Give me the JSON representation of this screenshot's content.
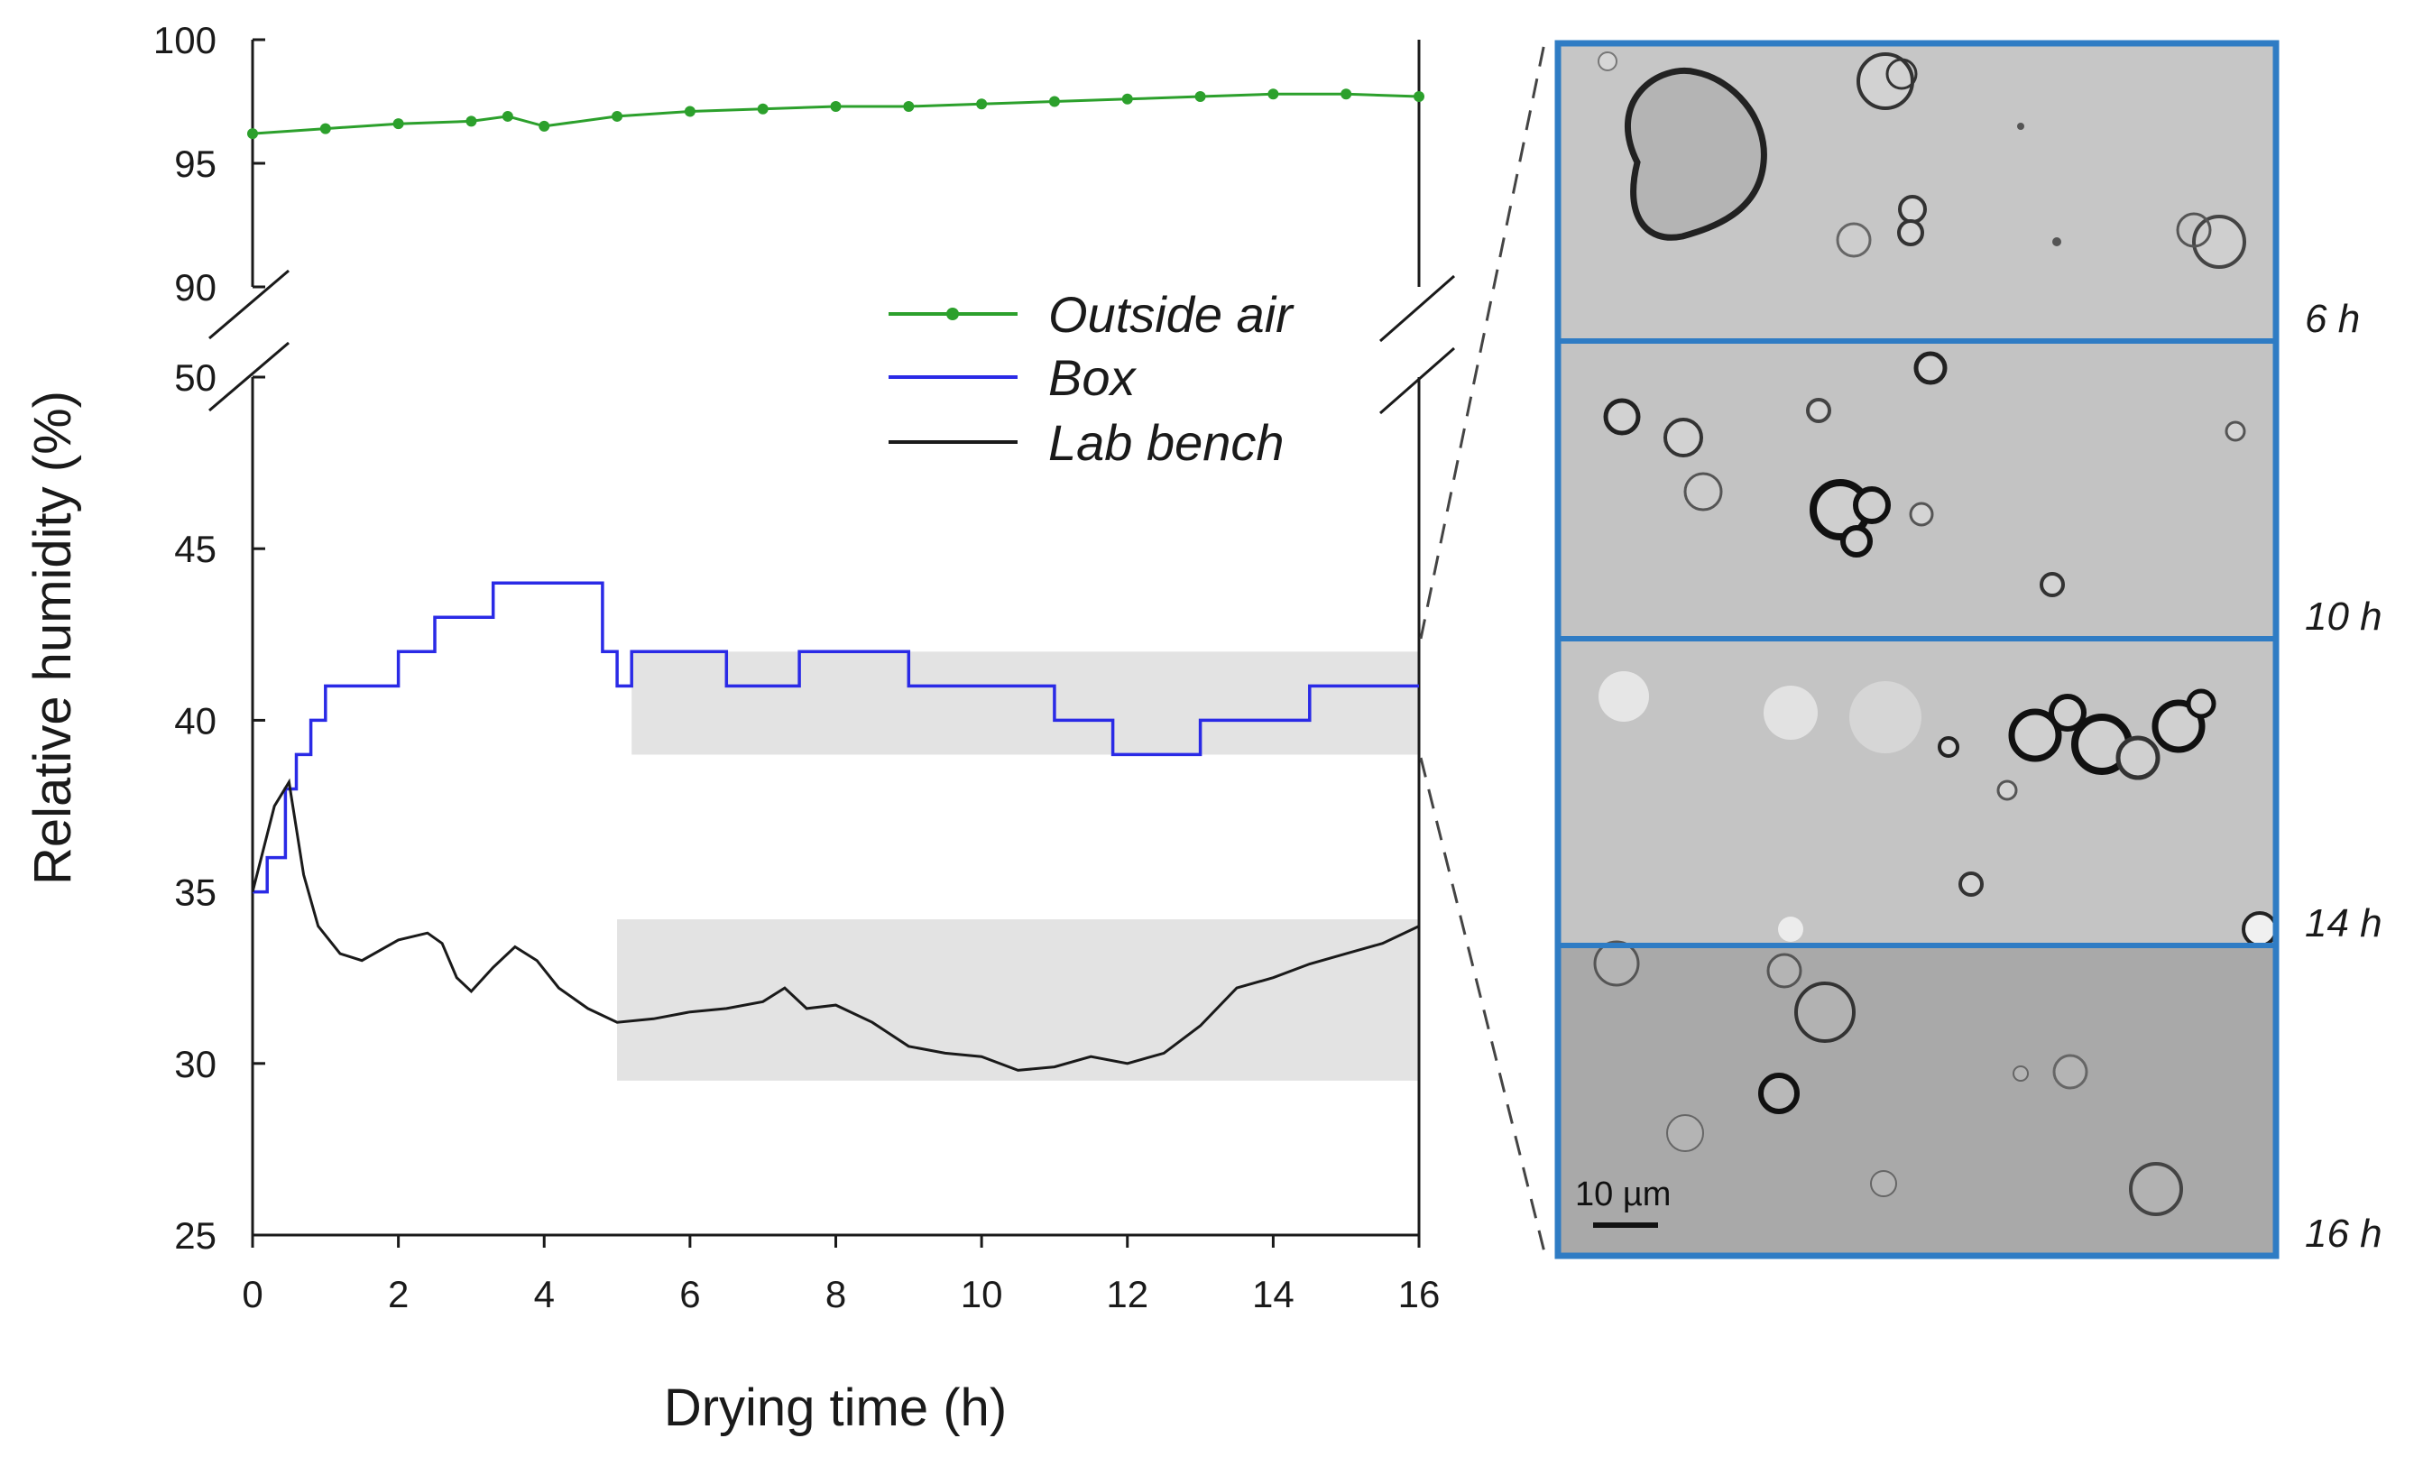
{
  "chart_data": {
    "type": "line",
    "xlabel": "Drying time (h)",
    "ylabel": "Relative humidity (%)",
    "xlim": [
      0,
      16
    ],
    "x_ticks": [
      "0",
      "2",
      "4",
      "6",
      "8",
      "10",
      "12",
      "14",
      "16"
    ],
    "y_upper_range": [
      90,
      100
    ],
    "y_upper_ticks": [
      "90",
      "95",
      "100"
    ],
    "y_lower_range": [
      25,
      50
    ],
    "y_lower_ticks": [
      "25",
      "30",
      "35",
      "40",
      "45",
      "50"
    ],
    "axis_break": "between 50 and 90",
    "legend_position": "top-right",
    "series": [
      {
        "name": "Outside air",
        "color": "#2ca02c",
        "marker": "circle",
        "points": [
          [
            0,
            96.2
          ],
          [
            1,
            96.4
          ],
          [
            2,
            96.6
          ],
          [
            3,
            96.7
          ],
          [
            3.5,
            96.9
          ],
          [
            4,
            96.5
          ],
          [
            5,
            96.9
          ],
          [
            6,
            97.1
          ],
          [
            7,
            97.2
          ],
          [
            8,
            97.3
          ],
          [
            9,
            97.3
          ],
          [
            10,
            97.4
          ],
          [
            11,
            97.5
          ],
          [
            12,
            97.6
          ],
          [
            13,
            97.7
          ],
          [
            14,
            97.8
          ],
          [
            15,
            97.8
          ],
          [
            16,
            97.7
          ]
        ]
      },
      {
        "name": "Box",
        "color": "#2a2ae6",
        "step": true,
        "points": [
          [
            0,
            35
          ],
          [
            0.2,
            36
          ],
          [
            0.45,
            38
          ],
          [
            0.6,
            39
          ],
          [
            0.8,
            40
          ],
          [
            1.0,
            41
          ],
          [
            2.0,
            42
          ],
          [
            2.5,
            43
          ],
          [
            3.3,
            44
          ],
          [
            4.0,
            44
          ],
          [
            4.8,
            42
          ],
          [
            5.0,
            41
          ],
          [
            5.2,
            42
          ],
          [
            6.0,
            42
          ],
          [
            6.5,
            41
          ],
          [
            7.5,
            42
          ],
          [
            8.5,
            42
          ],
          [
            9.0,
            41
          ],
          [
            10.0,
            41
          ],
          [
            11.0,
            40
          ],
          [
            11.8,
            39
          ],
          [
            12.5,
            39
          ],
          [
            13.0,
            40
          ],
          [
            14.0,
            40
          ],
          [
            14.5,
            41
          ],
          [
            16.0,
            41
          ]
        ]
      },
      {
        "name": "Lab bench",
        "color": "#1a1a1a",
        "points": [
          [
            0,
            35
          ],
          [
            0.3,
            37.5
          ],
          [
            0.5,
            38.2
          ],
          [
            0.7,
            35.5
          ],
          [
            0.9,
            34
          ],
          [
            1.2,
            33.2
          ],
          [
            1.5,
            33
          ],
          [
            2.0,
            33.6
          ],
          [
            2.4,
            33.8
          ],
          [
            2.6,
            33.5
          ],
          [
            2.8,
            32.5
          ],
          [
            3.0,
            32.1
          ],
          [
            3.3,
            32.8
          ],
          [
            3.6,
            33.4
          ],
          [
            3.9,
            33
          ],
          [
            4.2,
            32.2
          ],
          [
            4.6,
            31.6
          ],
          [
            5.0,
            31.2
          ],
          [
            5.5,
            31.3
          ],
          [
            6.0,
            31.5
          ],
          [
            6.5,
            31.6
          ],
          [
            7.0,
            31.8
          ],
          [
            7.3,
            32.2
          ],
          [
            7.6,
            31.6
          ],
          [
            8.0,
            31.7
          ],
          [
            8.5,
            31.2
          ],
          [
            9.0,
            30.5
          ],
          [
            9.5,
            30.3
          ],
          [
            10.0,
            30.2
          ],
          [
            10.5,
            29.8
          ],
          [
            11.0,
            29.9
          ],
          [
            11.5,
            30.2
          ],
          [
            12.0,
            30
          ],
          [
            12.5,
            30.3
          ],
          [
            13.0,
            31.1
          ],
          [
            13.5,
            32.2
          ],
          [
            14.0,
            32.5
          ],
          [
            14.5,
            32.9
          ],
          [
            15.0,
            33.2
          ],
          [
            15.5,
            33.5
          ],
          [
            16.0,
            34
          ]
        ]
      }
    ],
    "highlight_bands": [
      {
        "series": "Box",
        "x_range": [
          5.2,
          16
        ],
        "y_range": [
          39,
          42
        ]
      },
      {
        "series": "Lab bench",
        "x_range": [
          5,
          16
        ],
        "y_range": [
          29.5,
          34.2
        ]
      }
    ]
  },
  "micrographs": {
    "time_labels": [
      "6 h",
      "10 h",
      "14 h",
      "16 h"
    ],
    "scale_bar_label": "10 µm",
    "frame_color": "#2f7cc4",
    "image_tones": [
      "#c6c6c6",
      "#c3c3c3",
      "#c4c4c4",
      "#a9a9a9"
    ]
  }
}
